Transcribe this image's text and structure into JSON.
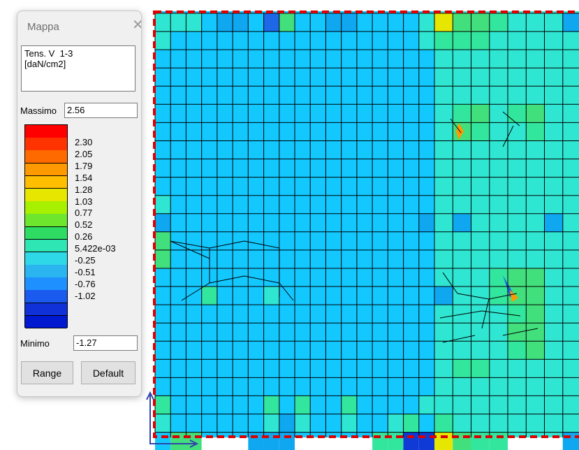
{
  "window": {
    "title": "Mappa",
    "close_glyph": "✕"
  },
  "panel": {
    "quantity_lines": [
      "Tens. V  1-3",
      "[daN/cm2]"
    ],
    "max_label": "Massimo",
    "max_value": "2.56",
    "min_label": "Minimo",
    "min_value": "-1.27",
    "range_button": "Range",
    "default_button": "Default"
  },
  "legend": {
    "colors": [
      "#ff0000",
      "#ff3300",
      "#ff6a00",
      "#ff9900",
      "#ffbf00",
      "#e6e600",
      "#a6f000",
      "#6ee62e",
      "#2fdc63",
      "#2ee6b4",
      "#2fd8e6",
      "#2ab4f0",
      "#1e90ff",
      "#1a5aef",
      "#1030d8",
      "#0018d0"
    ],
    "labels": [
      "2.30",
      "2.05",
      "1.79",
      "1.54",
      "1.28",
      "1.03",
      "0.77",
      "0.52",
      "0.26",
      " 5.422e-03",
      "-0.25",
      "-0.51",
      "-0.76",
      "-1.02"
    ]
  },
  "canvas": {
    "fill_colors": [
      "#13c8ff",
      "#2fe6d2",
      "#33e69e",
      "#42df7d",
      "#0fa8f0",
      "#1e68e8",
      "#e6e600",
      "#0f3ad6",
      "#ff9900"
    ]
  }
}
